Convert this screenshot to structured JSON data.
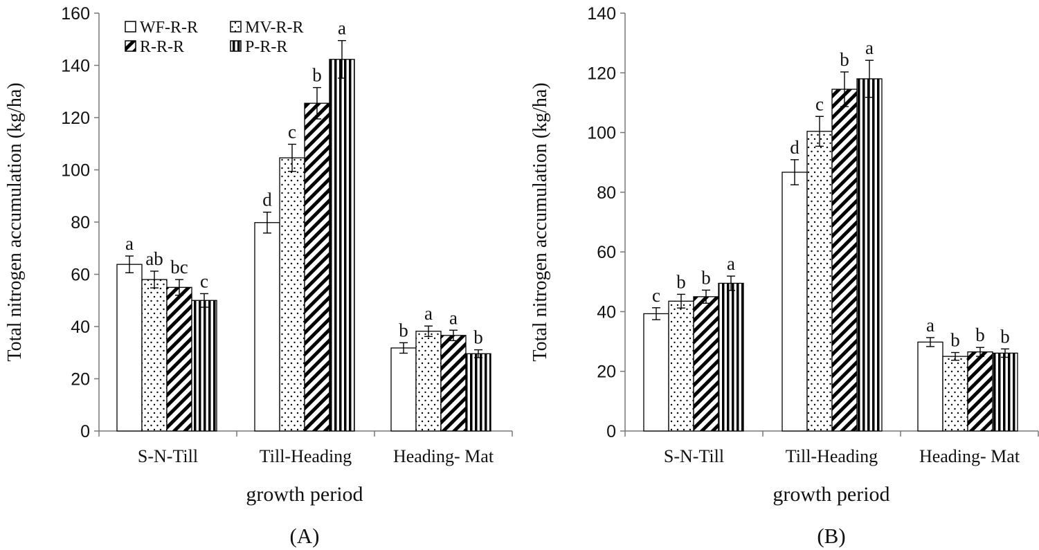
{
  "legend": {
    "items": [
      {
        "label": "WF-R-R",
        "pattern": "blank"
      },
      {
        "label": "MV-R-R",
        "pattern": "dots"
      },
      {
        "label": "R-R-R",
        "pattern": "diag"
      },
      {
        "label": "P-R-R",
        "pattern": "vert"
      }
    ]
  },
  "chart_data": [
    {
      "type": "bar",
      "panel_label": "(A)",
      "title": "",
      "xlabel": "growth period",
      "ylabel": "Total nitrogen accumulation (kg/ha)",
      "ylim": [
        0,
        160
      ],
      "yticks": [
        "0",
        "20",
        "40",
        "60",
        "80",
        "100",
        "120",
        "140",
        "160"
      ],
      "categories": [
        "S-N-Till",
        "Till-Heading",
        "Heading- Mat"
      ],
      "series": [
        {
          "name": "WF-R-R",
          "values": [
            63.8,
            79.8,
            31.8
          ],
          "errors": [
            3.2,
            4.0,
            2.0
          ],
          "letters": [
            "a",
            "d",
            "b"
          ]
        },
        {
          "name": "MV-R-R",
          "values": [
            58.0,
            104.6,
            38.2
          ],
          "errors": [
            3.2,
            5.2,
            2.0
          ],
          "letters": [
            "ab",
            "c",
            "a"
          ]
        },
        {
          "name": "R-R-R",
          "values": [
            55.0,
            125.5,
            36.6
          ],
          "errors": [
            3.0,
            6.0,
            2.0
          ],
          "letters": [
            "bc",
            "b",
            "a"
          ]
        },
        {
          "name": "P-R-R",
          "values": [
            50.0,
            142.3,
            29.6
          ],
          "errors": [
            2.6,
            7.2,
            1.5
          ],
          "letters": [
            "c",
            "a",
            "b"
          ]
        }
      ]
    },
    {
      "type": "bar",
      "panel_label": "(B)",
      "title": "",
      "xlabel": "growth period",
      "ylabel": "Total nitrogen accumulation (kg/ha)",
      "ylim": [
        0,
        140
      ],
      "yticks": [
        "0",
        "20",
        "40",
        "60",
        "80",
        "100",
        "120",
        "140"
      ],
      "categories": [
        "S-N-Till",
        "Till-Heading",
        "Heading- Mat"
      ],
      "series": [
        {
          "name": "WF-R-R",
          "values": [
            39.3,
            86.7,
            29.8
          ],
          "errors": [
            2.0,
            4.2,
            1.5
          ],
          "letters": [
            "c",
            "d",
            "a"
          ]
        },
        {
          "name": "MV-R-R",
          "values": [
            43.5,
            100.4,
            25.0
          ],
          "errors": [
            2.3,
            5.0,
            1.3
          ],
          "letters": [
            "b",
            "c",
            "b"
          ]
        },
        {
          "name": "R-R-R",
          "values": [
            45.0,
            114.5,
            26.5
          ],
          "errors": [
            2.2,
            5.8,
            1.5
          ],
          "letters": [
            "b",
            "b",
            "b"
          ]
        },
        {
          "name": "P-R-R",
          "values": [
            49.5,
            118.0,
            26.1
          ],
          "errors": [
            2.4,
            6.2,
            1.4
          ],
          "letters": [
            "a",
            "a",
            "b"
          ]
        }
      ]
    }
  ]
}
